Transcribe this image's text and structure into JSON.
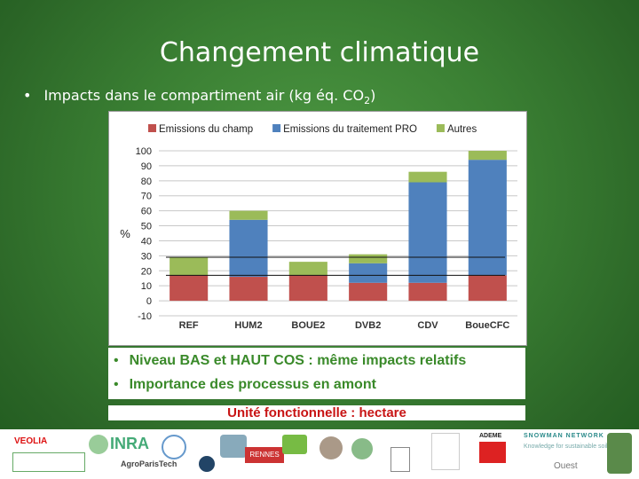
{
  "slide": {
    "title": "Changement climatique",
    "bullet_prefix": "Impacts dans le compartiment air (kg éq. CO",
    "bullet_sub": "2",
    "bullet_suffix": ")",
    "notes": [
      "Niveau  BAS et HAUT COS : même impacts relatifs",
      "Importance des processus en amont"
    ],
    "functional_unit": "Unité fonctionnelle : hectare"
  },
  "logos": {
    "veolia": "VEOLIA",
    "inra": "INRA",
    "agroparistech": "AgroParisTech",
    "rennes": "RENNES",
    "ademe": "ADEME",
    "snowman": "SNOWMAN NETWORK",
    "snowman_tagline": "Knowledge for sustainable soils",
    "ouest": "Ouest"
  },
  "chart_data": {
    "type": "bar",
    "stacked": true,
    "ylabel": "%",
    "ylim": [
      -10,
      100
    ],
    "yticks": [
      100,
      90,
      80,
      70,
      60,
      50,
      40,
      30,
      20,
      10,
      0,
      -10
    ],
    "categories": [
      "REF",
      "HUM2",
      "BOUE2",
      "DVB2",
      "CDV",
      "BoueCFC"
    ],
    "series": [
      {
        "name": "Emissions du champ",
        "color": "#c0504d",
        "values": [
          17,
          16,
          17,
          12,
          12,
          17
        ]
      },
      {
        "name": "Emissions du traitement PRO",
        "color": "#4f81bd",
        "values": [
          0,
          38,
          0,
          13,
          67,
          77
        ]
      },
      {
        "name": "Autres",
        "color": "#9bbb59",
        "values": [
          12,
          6,
          9,
          6,
          7,
          6
        ]
      }
    ],
    "reference_lines": [
      29,
      17
    ],
    "grid": true,
    "legend": "top"
  }
}
